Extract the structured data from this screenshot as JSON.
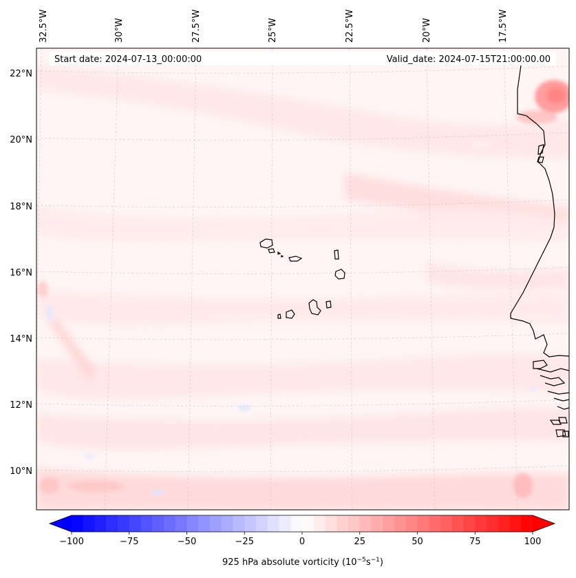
{
  "map": {
    "start_label": "Start date: 2024-07-13_00:00:00",
    "valid_label": "Valid_date: 2024-07-15T21:00:00.00",
    "lon_ticks": [
      "32.5°W",
      "30°W",
      "27.5°W",
      "25°W",
      "22.5°W",
      "20°W",
      "17.5°W"
    ],
    "lat_ticks": [
      "22°N",
      "20°N",
      "18°N",
      "16°N",
      "14°N",
      "12°N",
      "10°N"
    ],
    "regions": [
      "Cabo Verde islands",
      "West African coast"
    ]
  },
  "colorbar": {
    "label_prefix": "925 hPa absolute vorticity (10",
    "label_exp1": "−5",
    "label_mid": "s",
    "label_exp2": "−1",
    "label_suffix": ")",
    "vmin": -100,
    "vmax": 100,
    "ticks": [
      "−100",
      "−75",
      "−50",
      "−25",
      "0",
      "25",
      "50",
      "75",
      "100"
    ],
    "tick_values": [
      -100,
      -75,
      -50,
      -25,
      0,
      25,
      50,
      75,
      100
    ],
    "low_color": "#0000ff",
    "mid_color": "#ffffff",
    "high_color": "#ff0000"
  }
}
